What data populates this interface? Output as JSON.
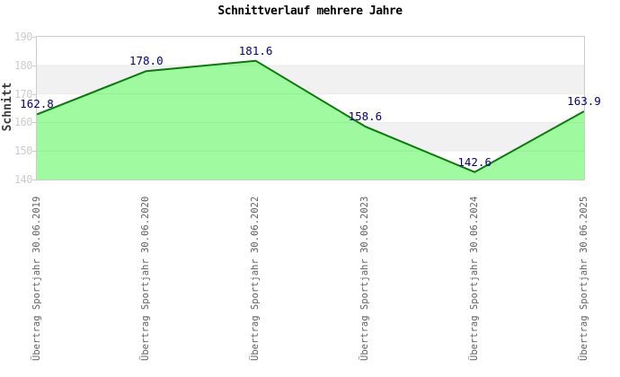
{
  "chart": {
    "title": "Schnittverlauf mehrere Jahre",
    "y_axis_title": "Schnitt"
  },
  "chart_data": {
    "type": "area",
    "title": "Schnittverlauf mehrere Jahre",
    "xlabel": "",
    "ylabel": "Schnitt",
    "categories": [
      "Übertrag Sportjahr 30.06.2019",
      "Übertrag Sportjahr 30.06.2020",
      "Übertrag Sportjahr 30.06.2022",
      "Übertrag Sportjahr 30.06.2023",
      "Übertrag Sportjahr 30.06.2024",
      "Übertrag Sportjahr 30.06.2025"
    ],
    "values": [
      162.8,
      178.0,
      181.6,
      158.6,
      142.6,
      163.9
    ],
    "value_labels": [
      "162.8",
      "178.0",
      "181.6",
      "158.6",
      "142.6",
      "163.9"
    ],
    "ylim": [
      140,
      190
    ],
    "ytick_step": 10,
    "ytick_labels": [
      "140",
      "150",
      "160",
      "170",
      "180",
      "190"
    ],
    "grid": "horizontal-bands",
    "legend": "none",
    "colors": {
      "fill": "#98FB98",
      "line": "#008000",
      "value_label": "#000080",
      "band_light": "#ffffff",
      "band_dark": "#f1f1f1",
      "plot_border": "#cccccc",
      "y_tick_label": "#cccccc",
      "category_label": "#606060",
      "title": "#000000"
    }
  }
}
